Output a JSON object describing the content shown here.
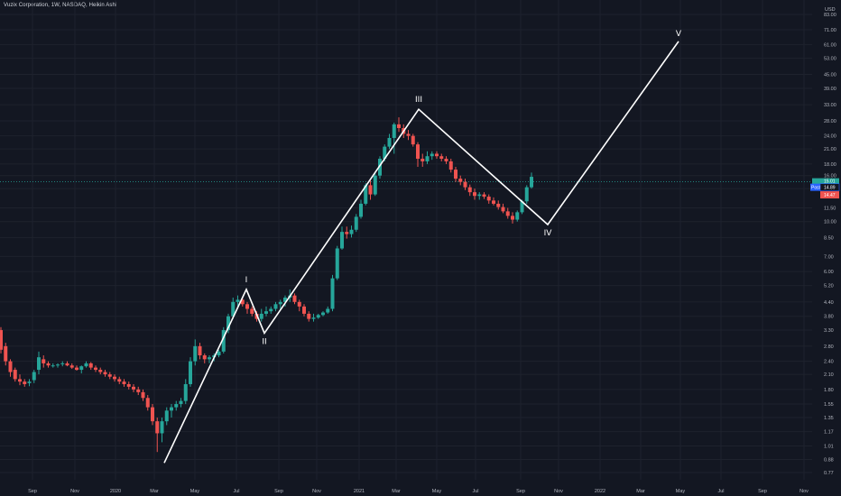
{
  "header": {
    "title": "Vuzix Corporation, 1W, NASDAQ, Heikin Ashi"
  },
  "chart_data": {
    "type": "candlestick",
    "currency_label": "USD",
    "scale": "log",
    "y_ticks": [
      "0.77",
      "0.88",
      "1.01",
      "1.17",
      "1.35",
      "1.55",
      "1.80",
      "2.10",
      "2.40",
      "2.80",
      "3.30",
      "3.80",
      "4.40",
      "5.20",
      "6.00",
      "7.00",
      "8.50",
      "10.00",
      "11.50",
      "14.00",
      "16.00",
      "18.00",
      "21.00",
      "24.00",
      "28.00",
      "33.00",
      "39.00",
      "45.00",
      "53.00",
      "61.00",
      "71.00",
      "83.00"
    ],
    "x_ticks": [
      "Sep",
      "Nov",
      "2020",
      "Mar",
      "May",
      "Jul",
      "Sep",
      "Nov",
      "2021",
      "Mar",
      "May",
      "Jul",
      "Sep",
      "Nov",
      "2022",
      "Mar",
      "May",
      "Jul",
      "Sep",
      "Nov"
    ],
    "price_tags": [
      {
        "label": "15.01",
        "sub": "3d 22h",
        "value": 15.01,
        "color": "#26a69a"
      },
      {
        "label": "Post",
        "value2": "14.89",
        "value": 14.2,
        "color": "#2962ff"
      },
      {
        "label": "14.47",
        "value": 12.9,
        "color": "#ef5350"
      }
    ],
    "current_price": 15.01,
    "candles": [
      [
        3.3,
        3.4,
        2.6,
        2.7
      ],
      [
        2.8,
        2.9,
        2.3,
        2.4
      ],
      [
        2.4,
        2.45,
        2.05,
        2.15
      ],
      [
        2.2,
        2.25,
        1.95,
        2.0
      ],
      [
        2.0,
        2.1,
        1.88,
        1.95
      ],
      [
        1.95,
        2.0,
        1.85,
        1.9
      ],
      [
        1.92,
        2.0,
        1.86,
        1.95
      ],
      [
        1.98,
        2.2,
        1.92,
        2.15
      ],
      [
        2.2,
        2.65,
        2.1,
        2.5
      ],
      [
        2.45,
        2.55,
        2.25,
        2.35
      ],
      [
        2.35,
        2.4,
        2.25,
        2.3
      ],
      [
        2.3,
        2.35,
        2.25,
        2.3
      ],
      [
        2.3,
        2.35,
        2.25,
        2.32
      ],
      [
        2.33,
        2.4,
        2.28,
        2.35
      ],
      [
        2.35,
        2.4,
        2.28,
        2.3
      ],
      [
        2.3,
        2.35,
        2.22,
        2.25
      ],
      [
        2.25,
        2.3,
        2.18,
        2.2
      ],
      [
        2.2,
        2.3,
        2.12,
        2.28
      ],
      [
        2.28,
        2.4,
        2.25,
        2.35
      ],
      [
        2.35,
        2.38,
        2.2,
        2.25
      ],
      [
        2.25,
        2.3,
        2.15,
        2.2
      ],
      [
        2.2,
        2.25,
        2.1,
        2.15
      ],
      [
        2.15,
        2.2,
        2.05,
        2.1
      ],
      [
        2.1,
        2.15,
        2.0,
        2.05
      ],
      [
        2.05,
        2.1,
        1.95,
        2.0
      ],
      [
        2.0,
        2.05,
        1.9,
        1.95
      ],
      [
        1.95,
        2.0,
        1.85,
        1.9
      ],
      [
        1.9,
        1.95,
        1.8,
        1.85
      ],
      [
        1.85,
        1.9,
        1.75,
        1.8
      ],
      [
        1.8,
        1.85,
        1.7,
        1.75
      ],
      [
        1.75,
        1.8,
        1.6,
        1.65
      ],
      [
        1.65,
        1.7,
        1.45,
        1.5
      ],
      [
        1.5,
        1.55,
        1.25,
        1.3
      ],
      [
        1.3,
        1.35,
        0.95,
        1.15
      ],
      [
        1.15,
        1.35,
        1.05,
        1.3
      ],
      [
        1.3,
        1.5,
        1.25,
        1.45
      ],
      [
        1.45,
        1.55,
        1.35,
        1.5
      ],
      [
        1.5,
        1.6,
        1.45,
        1.55
      ],
      [
        1.55,
        1.65,
        1.5,
        1.6
      ],
      [
        1.6,
        2.0,
        1.55,
        1.9
      ],
      [
        1.9,
        2.5,
        1.85,
        2.4
      ],
      [
        2.4,
        3.0,
        2.3,
        2.8
      ],
      [
        2.8,
        2.9,
        2.45,
        2.55
      ],
      [
        2.55,
        2.6,
        2.35,
        2.45
      ],
      [
        2.45,
        2.55,
        2.35,
        2.5
      ],
      [
        2.5,
        2.6,
        2.4,
        2.55
      ],
      [
        2.55,
        2.7,
        2.5,
        2.65
      ],
      [
        2.65,
        3.4,
        2.6,
        3.3
      ],
      [
        3.3,
        3.9,
        3.2,
        3.8
      ],
      [
        3.8,
        4.6,
        3.7,
        4.4
      ],
      [
        4.4,
        4.7,
        4.2,
        4.5
      ],
      [
        4.5,
        4.6,
        4.2,
        4.3
      ],
      [
        4.3,
        4.4,
        3.9,
        4.1
      ],
      [
        4.1,
        4.2,
        3.8,
        3.9
      ],
      [
        3.9,
        4.0,
        3.6,
        3.7
      ],
      [
        3.7,
        4.1,
        3.6,
        3.9
      ],
      [
        3.9,
        4.2,
        3.8,
        4.0
      ],
      [
        4.0,
        4.2,
        3.9,
        4.1
      ],
      [
        4.1,
        4.4,
        4.0,
        4.3
      ],
      [
        4.3,
        4.5,
        4.1,
        4.4
      ],
      [
        4.4,
        4.7,
        4.2,
        4.6
      ],
      [
        4.6,
        5.0,
        4.4,
        4.7
      ],
      [
        4.7,
        4.8,
        4.3,
        4.4
      ],
      [
        4.4,
        4.5,
        4.0,
        4.2
      ],
      [
        4.2,
        4.3,
        3.8,
        3.9
      ],
      [
        3.9,
        4.0,
        3.6,
        3.7
      ],
      [
        3.7,
        3.9,
        3.6,
        3.75
      ],
      [
        3.75,
        3.9,
        3.7,
        3.85
      ],
      [
        3.85,
        4.0,
        3.8,
        3.95
      ],
      [
        3.95,
        4.2,
        3.9,
        4.1
      ],
      [
        4.1,
        5.8,
        4.0,
        5.6
      ],
      [
        5.6,
        7.8,
        5.5,
        7.6
      ],
      [
        7.6,
        9.5,
        7.5,
        9.0
      ],
      [
        9.0,
        9.5,
        8.4,
        8.8
      ],
      [
        8.8,
        9.6,
        8.5,
        9.2
      ],
      [
        9.2,
        10.8,
        9.0,
        10.5
      ],
      [
        10.5,
        12.5,
        10.3,
        12.0
      ],
      [
        12.0,
        14.8,
        11.8,
        14.5
      ],
      [
        14.5,
        15.2,
        12.5,
        13.2
      ],
      [
        13.2,
        16.5,
        13.0,
        16.0
      ],
      [
        16.0,
        19.5,
        15.5,
        19.0
      ],
      [
        19.0,
        22.0,
        18.5,
        21.5
      ],
      [
        21.5,
        24.5,
        21.0,
        23.5
      ],
      [
        23.5,
        27.5,
        20.0,
        27.0
      ],
      [
        27.0,
        29.0,
        25.0,
        26.0
      ],
      [
        26.0,
        27.0,
        23.5,
        24.5
      ],
      [
        24.5,
        25.5,
        23.0,
        24.0
      ],
      [
        24.0,
        24.5,
        21.5,
        22.0
      ],
      [
        22.0,
        22.5,
        17.5,
        19.0
      ],
      [
        19.0,
        20.0,
        17.5,
        18.5
      ],
      [
        18.5,
        20.5,
        18.0,
        19.5
      ],
      [
        19.5,
        20.5,
        18.8,
        20.0
      ],
      [
        20.0,
        20.5,
        19.0,
        19.5
      ],
      [
        19.5,
        20.0,
        18.5,
        19.0
      ],
      [
        19.0,
        19.5,
        18.0,
        18.5
      ],
      [
        18.5,
        19.0,
        16.5,
        17.0
      ],
      [
        17.0,
        17.5,
        15.0,
        15.5
      ],
      [
        15.5,
        16.0,
        14.5,
        15.0
      ],
      [
        15.0,
        15.5,
        13.8,
        14.2
      ],
      [
        14.2,
        14.6,
        13.0,
        13.5
      ],
      [
        13.5,
        14.0,
        12.5,
        13.0
      ],
      [
        13.0,
        13.5,
        12.5,
        13.2
      ],
      [
        13.2,
        13.5,
        12.6,
        12.9
      ],
      [
        12.9,
        13.2,
        12.0,
        12.4
      ],
      [
        12.4,
        12.8,
        11.8,
        12.0
      ],
      [
        12.0,
        12.4,
        11.3,
        11.6
      ],
      [
        11.6,
        12.0,
        10.9,
        11.1
      ],
      [
        11.1,
        11.5,
        10.3,
        10.6
      ],
      [
        10.6,
        11.0,
        9.8,
        10.2
      ],
      [
        10.2,
        11.2,
        10.0,
        11.0
      ],
      [
        11.0,
        12.5,
        10.8,
        12.3
      ],
      [
        12.3,
        14.5,
        12.0,
        14.2
      ],
      [
        14.2,
        16.5,
        14.0,
        15.8
      ]
    ],
    "waves": [
      {
        "label": "I",
        "value": 5.0
      },
      {
        "label": "II",
        "value": 3.2
      },
      {
        "label": "III",
        "value": 31.5
      },
      {
        "label": "IV",
        "value": 9.7
      },
      {
        "label": "V",
        "value": 63.0
      }
    ]
  }
}
